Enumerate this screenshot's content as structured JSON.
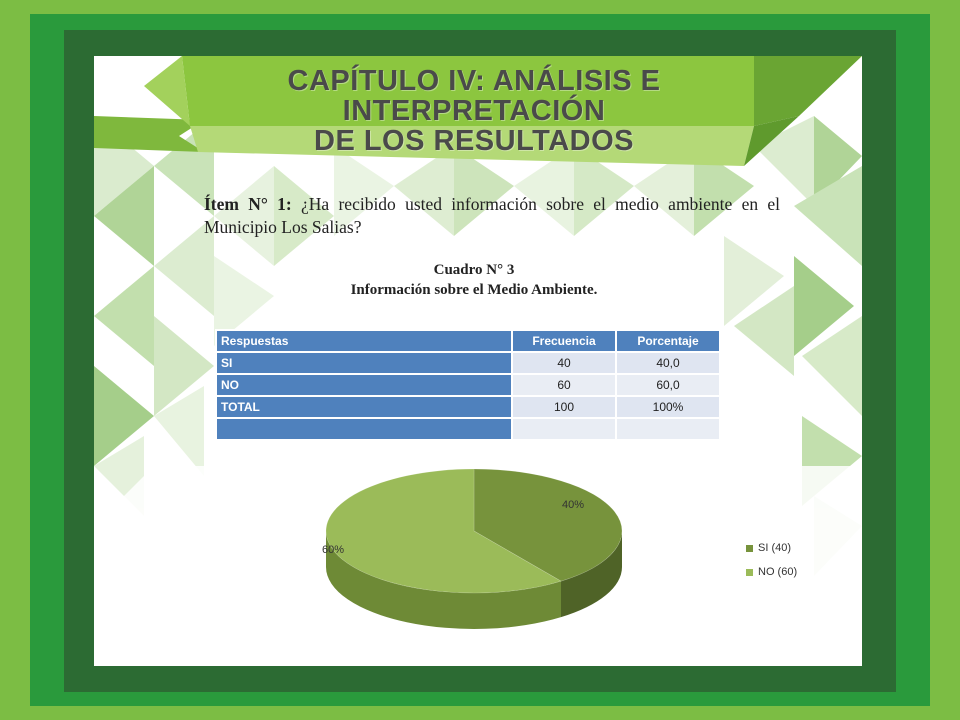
{
  "header": {
    "title_line1": "CAPÍTULO IV: ANÁLISIS E INTERPRETACIÓN",
    "title_line2": "DE LOS RESULTADOS"
  },
  "item": {
    "label": "Ítem N° 1:",
    "question": "¿Ha recibido usted información sobre el medio ambiente en el Municipio Los Salias?"
  },
  "caption": {
    "line1": "Cuadro N° 3",
    "line2": "Información sobre el Medio Ambiente."
  },
  "table": {
    "headers": [
      "Respuestas",
      "Frecuencia",
      "Porcentaje"
    ],
    "rows": [
      {
        "label": "SI",
        "freq": "40",
        "pct": "40,0"
      },
      {
        "label": "NO",
        "freq": "60",
        "pct": "60,0"
      },
      {
        "label": "TOTAL",
        "freq": "100",
        "pct": "100%"
      },
      {
        "label": "",
        "freq": "",
        "pct": ""
      }
    ]
  },
  "colors": {
    "si": "#77933c",
    "no": "#9bbb59",
    "table_header": "#4f81bd"
  },
  "chart_data": {
    "type": "pie",
    "categories": [
      "SI (40)",
      "NO (60)"
    ],
    "values": [
      40,
      60
    ],
    "data_labels": [
      "40%",
      "60%"
    ],
    "legend_position": "right"
  }
}
